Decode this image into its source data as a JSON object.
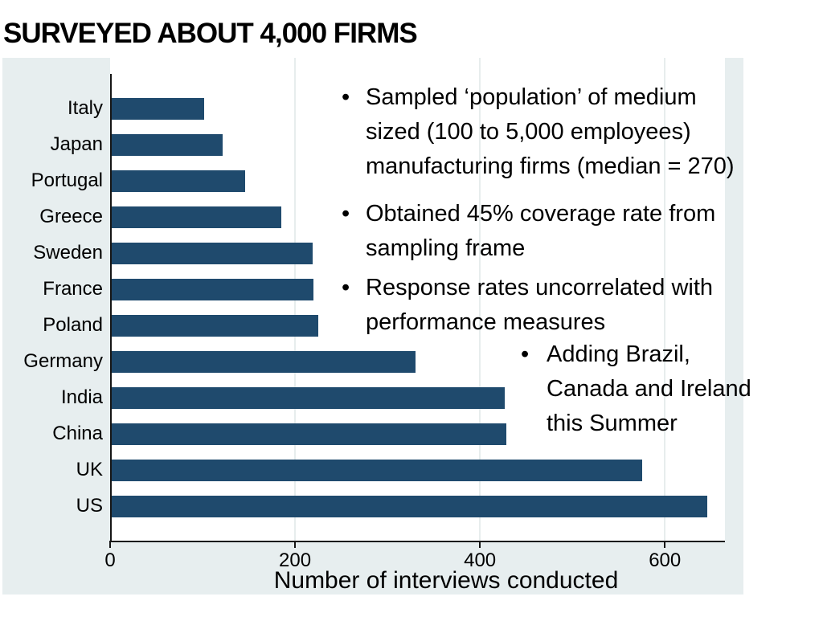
{
  "slide": {
    "title": "SURVEYED ABOUT 4,000 FIRMS"
  },
  "bullets": {
    "items": [
      {
        "indent": 0,
        "lines": [
          "Sampled ‘population’ of medium",
          "sized (100 to 5,000 employees)",
          "manufacturing firms (median = 270)"
        ]
      },
      {
        "indent": 0,
        "lines": [
          "Obtained 45% coverage rate from",
          "sampling frame"
        ]
      },
      {
        "indent": 0,
        "lines": [
          "Response rates uncorrelated with",
          "performance measures"
        ]
      },
      {
        "indent": 1,
        "lines": [
          "Adding Brazil,",
          "Canada and Ireland",
          "this Summer"
        ]
      }
    ]
  },
  "chart_data": {
    "type": "bar",
    "orientation": "horizontal",
    "title": "",
    "xlabel": "Number of interviews conducted",
    "ylabel": "",
    "categories": [
      "Italy",
      "Japan",
      "Portugal",
      "Greece",
      "Sweden",
      "France",
      "Poland",
      "Germany",
      "India",
      "China",
      "UK",
      "US"
    ],
    "values": [
      100,
      120,
      144,
      183,
      217,
      218,
      223,
      329,
      425,
      427,
      574,
      644
    ],
    "xticks": [
      0,
      200,
      400,
      600
    ],
    "xlim": [
      0,
      665
    ],
    "grid": true,
    "bar_color": "#1f4a6d",
    "panel_color": "#e7eeef",
    "gridline_color": "#e7eded",
    "axis_color": "#161616"
  }
}
